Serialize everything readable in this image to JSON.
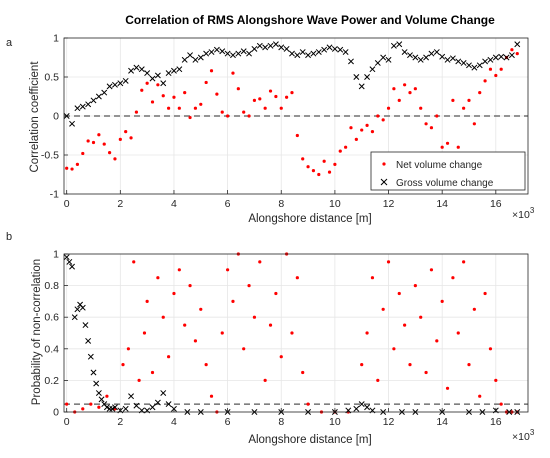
{
  "panels": [
    {
      "label": "a"
    },
    {
      "label": "b"
    }
  ],
  "chart_data": [
    {
      "type": "scatter",
      "title": "Correlation of RMS Alongshore Wave Power and Volume Change",
      "xlabel": "Alongshore distance [m]",
      "ylabel": "Correlation coefficient",
      "x_exponent_label": "×10",
      "x_exponent_power": "3",
      "xlim": [
        -0.1,
        17.2
      ],
      "ylim": [
        -1,
        1
      ],
      "xticks": [
        0,
        2,
        4,
        6,
        8,
        10,
        12,
        14,
        16
      ],
      "yticks": [
        -1,
        -0.5,
        0,
        0.5,
        1
      ],
      "x_tick_labels": [
        "0",
        "2",
        "4",
        "6",
        "8",
        "10",
        "12",
        "14",
        "16"
      ],
      "y_tick_labels": [
        "-1",
        "-0.5",
        "0",
        "0.5",
        "1"
      ],
      "grid": true,
      "reference_line": {
        "y": 0,
        "style": "dashed"
      },
      "legend": {
        "placement": "bottom-right"
      },
      "series": [
        {
          "name": "Net volume change",
          "marker": "dot",
          "color": "#ff0000",
          "x": [
            0.0,
            0.2,
            0.4,
            0.6,
            0.8,
            1.0,
            1.2,
            1.4,
            1.6,
            1.8,
            2.0,
            2.2,
            2.4,
            2.6,
            2.8,
            3.0,
            3.2,
            3.4,
            3.6,
            3.8,
            4.0,
            4.2,
            4.4,
            4.6,
            4.8,
            5.0,
            5.2,
            5.4,
            5.6,
            5.8,
            6.0,
            6.2,
            6.4,
            6.6,
            6.8,
            7.0,
            7.2,
            7.4,
            7.6,
            7.8,
            8.0,
            8.2,
            8.4,
            8.6,
            8.8,
            9.0,
            9.2,
            9.4,
            9.6,
            9.8,
            10.0,
            10.2,
            10.4,
            10.6,
            10.8,
            11.0,
            11.2,
            11.4,
            11.6,
            11.8,
            12.0,
            12.2,
            12.4,
            12.6,
            12.8,
            13.0,
            13.2,
            13.4,
            13.6,
            13.8,
            14.0,
            14.2,
            14.4,
            14.6,
            14.8,
            15.0,
            15.2,
            15.4,
            15.6,
            15.8,
            16.0,
            16.2,
            16.4,
            16.6,
            16.8
          ],
          "y": [
            -0.67,
            -0.68,
            -0.62,
            -0.48,
            -0.32,
            -0.34,
            -0.24,
            -0.36,
            -0.47,
            -0.55,
            -0.3,
            -0.2,
            -0.28,
            0.05,
            0.33,
            0.42,
            0.18,
            0.4,
            0.26,
            0.1,
            0.24,
            0.1,
            0.3,
            -0.02,
            0.1,
            0.15,
            0.43,
            0.58,
            0.28,
            0.05,
            0.0,
            0.55,
            0.35,
            0.05,
            0.0,
            0.2,
            0.22,
            0.1,
            0.32,
            0.25,
            0.1,
            0.24,
            0.3,
            -0.25,
            -0.55,
            -0.65,
            -0.7,
            -0.75,
            -0.58,
            -0.72,
            -0.62,
            -0.45,
            -0.4,
            -0.15,
            -0.3,
            -0.18,
            -0.12,
            -0.2,
            0.0,
            -0.05,
            0.1,
            0.35,
            0.2,
            0.4,
            0.3,
            0.35,
            0.1,
            -0.1,
            -0.15,
            0.0,
            -0.4,
            -0.35,
            0.2,
            -0.4,
            0.1,
            0.2,
            -0.1,
            0.3,
            0.45,
            0.6,
            0.52,
            0.6,
            0.75,
            0.85,
            0.8
          ]
        },
        {
          "name": "Gross volume change",
          "marker": "x",
          "color": "#000000",
          "x": [
            0.0,
            0.2,
            0.4,
            0.6,
            0.8,
            1.0,
            1.2,
            1.4,
            1.6,
            1.8,
            2.0,
            2.2,
            2.4,
            2.6,
            2.8,
            3.0,
            3.2,
            3.4,
            3.6,
            3.8,
            4.0,
            4.2,
            4.4,
            4.6,
            4.8,
            5.0,
            5.2,
            5.4,
            5.6,
            5.8,
            6.0,
            6.2,
            6.4,
            6.6,
            6.8,
            7.0,
            7.2,
            7.4,
            7.6,
            7.8,
            8.0,
            8.2,
            8.4,
            8.6,
            8.8,
            9.0,
            9.2,
            9.4,
            9.6,
            9.8,
            10.0,
            10.2,
            10.4,
            10.6,
            10.8,
            11.0,
            11.2,
            11.4,
            11.6,
            11.8,
            12.0,
            12.2,
            12.4,
            12.6,
            12.8,
            13.0,
            13.2,
            13.4,
            13.6,
            13.8,
            14.0,
            14.2,
            14.4,
            14.6,
            14.8,
            15.0,
            15.2,
            15.4,
            15.6,
            15.8,
            16.0,
            16.2,
            16.4,
            16.6,
            16.8
          ],
          "y": [
            0.0,
            -0.1,
            0.1,
            0.12,
            0.15,
            0.2,
            0.25,
            0.3,
            0.38,
            0.4,
            0.42,
            0.45,
            0.58,
            0.62,
            0.6,
            0.55,
            0.48,
            0.52,
            0.42,
            0.55,
            0.58,
            0.6,
            0.72,
            0.78,
            0.72,
            0.75,
            0.8,
            0.82,
            0.85,
            0.83,
            0.8,
            0.78,
            0.8,
            0.83,
            0.8,
            0.86,
            0.9,
            0.88,
            0.9,
            0.92,
            0.88,
            0.86,
            0.8,
            0.78,
            0.82,
            0.78,
            0.8,
            0.82,
            0.85,
            0.88,
            0.86,
            0.85,
            0.82,
            0.7,
            0.5,
            0.38,
            0.5,
            0.6,
            0.68,
            0.75,
            0.72,
            0.9,
            0.92,
            0.82,
            0.78,
            0.75,
            0.72,
            0.75,
            0.8,
            0.82,
            0.76,
            0.72,
            0.74,
            0.7,
            0.68,
            0.65,
            0.62,
            0.65,
            0.7,
            0.72,
            0.75,
            0.76,
            0.75,
            0.78,
            0.92
          ]
        }
      ]
    },
    {
      "type": "scatter",
      "title": "",
      "xlabel": "Alongshore distance [m]",
      "ylabel": "Probability of non-correlation",
      "x_exponent_label": "×10",
      "x_exponent_power": "3",
      "xlim": [
        -0.1,
        17.2
      ],
      "ylim": [
        0,
        1
      ],
      "xticks": [
        0,
        2,
        4,
        6,
        8,
        10,
        12,
        14,
        16
      ],
      "yticks": [
        0,
        0.2,
        0.4,
        0.6,
        0.8,
        1
      ],
      "x_tick_labels": [
        "0",
        "2",
        "4",
        "6",
        "8",
        "10",
        "12",
        "14",
        "16"
      ],
      "y_tick_labels": [
        "0",
        "0.2",
        "0.4",
        "0.6",
        "0.8",
        "1"
      ],
      "grid": true,
      "reference_line": {
        "y": 0.05,
        "style": "dashed"
      },
      "series": [
        {
          "name": "Net volume change",
          "marker": "dot",
          "color": "#ff0000",
          "x": [
            0.0,
            0.3,
            0.6,
            0.9,
            1.2,
            1.5,
            1.8,
            2.1,
            2.3,
            2.5,
            2.7,
            2.9,
            3.0,
            3.2,
            3.4,
            3.6,
            3.8,
            4.0,
            4.2,
            4.4,
            4.6,
            4.8,
            5.0,
            5.2,
            5.4,
            5.6,
            5.8,
            6.0,
            6.2,
            6.4,
            6.6,
            6.8,
            7.0,
            7.2,
            7.4,
            7.6,
            7.8,
            8.0,
            8.2,
            8.4,
            8.6,
            8.8,
            9.0,
            9.5,
            10.0,
            10.5,
            11.0,
            11.2,
            11.4,
            11.6,
            11.8,
            12.0,
            12.2,
            12.4,
            12.6,
            12.8,
            13.0,
            13.2,
            13.4,
            13.6,
            13.8,
            14.0,
            14.2,
            14.4,
            14.6,
            14.8,
            15.0,
            15.2,
            15.4,
            15.6,
            15.8,
            16.0,
            16.2,
            16.4,
            16.6,
            16.8
          ],
          "y": [
            0.05,
            0.0,
            0.02,
            0.05,
            0.03,
            0.1,
            0.02,
            0.3,
            0.4,
            0.95,
            0.2,
            0.5,
            0.7,
            0.25,
            0.85,
            0.6,
            0.35,
            0.75,
            0.9,
            0.55,
            0.8,
            0.45,
            0.65,
            0.3,
            0.1,
            0.0,
            0.5,
            0.9,
            0.7,
            1.0,
            0.4,
            0.8,
            0.6,
            0.95,
            0.2,
            0.55,
            0.75,
            0.35,
            1.0,
            0.5,
            0.85,
            0.25,
            0.05,
            0.0,
            0.0,
            0.0,
            0.3,
            0.5,
            0.85,
            0.2,
            0.65,
            0.95,
            0.4,
            0.75,
            0.55,
            0.3,
            0.8,
            0.6,
            0.25,
            0.9,
            0.45,
            0.7,
            0.15,
            0.85,
            0.5,
            0.95,
            0.3,
            0.65,
            0.1,
            0.75,
            0.4,
            0.2,
            0.05,
            0.0,
            0.0,
            0.0
          ]
        },
        {
          "name": "Gross volume change",
          "marker": "x",
          "color": "#000000",
          "x": [
            0.0,
            0.1,
            0.2,
            0.3,
            0.4,
            0.5,
            0.6,
            0.7,
            0.8,
            0.9,
            1.0,
            1.1,
            1.2,
            1.3,
            1.4,
            1.5,
            1.6,
            1.7,
            1.8,
            2.0,
            2.2,
            2.4,
            2.6,
            2.8,
            3.0,
            3.2,
            3.4,
            3.6,
            3.8,
            4.0,
            4.5,
            5.0,
            6.0,
            7.0,
            8.0,
            9.0,
            10.0,
            10.5,
            10.8,
            11.0,
            11.2,
            11.4,
            11.8,
            12.5,
            13.0,
            14.0,
            15.0,
            15.5,
            16.0,
            16.5,
            16.8
          ],
          "y": [
            0.98,
            0.95,
            0.92,
            0.6,
            0.65,
            0.68,
            0.66,
            0.55,
            0.45,
            0.35,
            0.25,
            0.18,
            0.12,
            0.08,
            0.05,
            0.03,
            0.02,
            0.02,
            0.03,
            0.01,
            0.02,
            0.1,
            0.04,
            0.01,
            0.01,
            0.03,
            0.06,
            0.12,
            0.05,
            0.02,
            0.0,
            0.0,
            0.0,
            0.0,
            0.0,
            0.0,
            0.0,
            0.01,
            0.02,
            0.05,
            0.03,
            0.01,
            0.0,
            0.0,
            0.0,
            0.0,
            0.0,
            0.0,
            0.01,
            0.0,
            0.0
          ]
        }
      ]
    }
  ]
}
